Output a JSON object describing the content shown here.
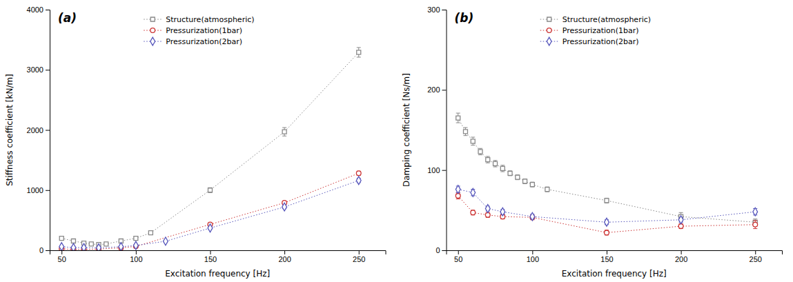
{
  "chart_data": [
    {
      "type": "line",
      "title": "(a)",
      "xlabel": "Excitation frequency [Hz]",
      "ylabel": "Stiffness coefficient [kN/m]",
      "xlim": [
        42,
        268
      ],
      "ylim": [
        0,
        4000
      ],
      "xticks": [
        50,
        100,
        150,
        200,
        250
      ],
      "yticks": [
        0,
        1000,
        2000,
        3000,
        4000
      ],
      "grid": false,
      "legend": "upper left",
      "series": [
        {
          "name": "Structure(atmospheric)",
          "color": "#888888",
          "marker": "square",
          "line_style": "dotted",
          "x": [
            50,
            58,
            65,
            70,
            75,
            80,
            90,
            100,
            110,
            150,
            200,
            250
          ],
          "values": [
            200,
            155,
            120,
            105,
            95,
            105,
            155,
            200,
            290,
            1000,
            1970,
            3290
          ],
          "errors": [
            15,
            10,
            8,
            8,
            8,
            8,
            10,
            15,
            18,
            40,
            70,
            80
          ]
        },
        {
          "name": "Pressurization(1bar)",
          "color": "#cc3333",
          "marker": "circle",
          "line_style": "dotted",
          "x": [
            50,
            58,
            65,
            75,
            90,
            100,
            150,
            200,
            250
          ],
          "values": [
            25,
            15,
            15,
            20,
            40,
            65,
            430,
            790,
            1280
          ],
          "errors": [
            8,
            6,
            6,
            6,
            8,
            8,
            20,
            30,
            35
          ]
        },
        {
          "name": "Pressurization(2bar)",
          "color": "#5555bb",
          "marker": "diamond",
          "line_style": "dotted",
          "x": [
            50,
            58,
            65,
            75,
            90,
            100,
            120,
            150,
            200,
            250
          ],
          "values": [
            60,
            45,
            45,
            40,
            60,
            80,
            150,
            370,
            720,
            1160
          ],
          "errors": [
            8,
            6,
            6,
            6,
            8,
            8,
            12,
            18,
            28,
            35
          ]
        }
      ]
    },
    {
      "type": "line",
      "title": "(b)",
      "xlabel": "Excitation frequency [Hz]",
      "ylabel": "Damping coefficient [Ns/m]",
      "xlim": [
        42,
        268
      ],
      "ylim": [
        0,
        300
      ],
      "xticks": [
        50,
        100,
        150,
        200,
        250
      ],
      "yticks": [
        0,
        100,
        200,
        300
      ],
      "grid": false,
      "legend": "upper left",
      "series": [
        {
          "name": "Structure(atmospheric)",
          "color": "#888888",
          "marker": "square",
          "line_style": "dotted",
          "x": [
            50,
            55,
            60,
            65,
            70,
            75,
            80,
            85,
            90,
            95,
            100,
            110,
            150,
            200,
            250
          ],
          "values": [
            165,
            148,
            136,
            123,
            113,
            108,
            102,
            96,
            91,
            86,
            82,
            76,
            62,
            42,
            35
          ],
          "errors": [
            6,
            5,
            5,
            4,
            4,
            4,
            4,
            3,
            3,
            3,
            3,
            3,
            3,
            5,
            4
          ]
        },
        {
          "name": "Pressurization(1bar)",
          "color": "#cc3333",
          "marker": "circle",
          "line_style": "dotted",
          "x": [
            50,
            60,
            70,
            80,
            100,
            150,
            200,
            250
          ],
          "values": [
            68,
            47,
            44,
            42,
            41,
            22,
            30,
            32
          ],
          "errors": [
            4,
            3,
            3,
            3,
            3,
            3,
            3,
            5
          ]
        },
        {
          "name": "Pressurization(2bar)",
          "color": "#5555bb",
          "marker": "diamond",
          "line_style": "dotted",
          "x": [
            50,
            60,
            70,
            80,
            100,
            150,
            200,
            250
          ],
          "values": [
            76,
            72,
            52,
            48,
            42,
            35,
            38,
            48
          ],
          "errors": [
            4,
            4,
            3,
            3,
            3,
            3,
            3,
            4
          ]
        }
      ]
    }
  ]
}
